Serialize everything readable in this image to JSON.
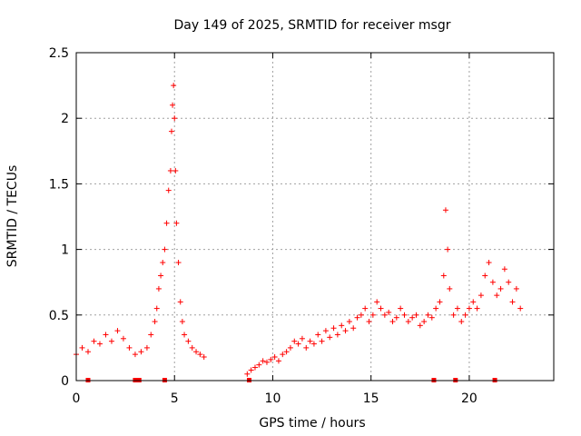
{
  "chart_data": {
    "type": "scatter",
    "title": "Day 149 of 2025, SRMTID for receiver msgr",
    "xlabel": "GPS time / hours",
    "ylabel": "SRMTID / TECUs",
    "xlim": [
      0,
      24.3
    ],
    "ylim": [
      0,
      2.5
    ],
    "x_ticks": [
      0,
      5,
      10,
      15,
      20
    ],
    "x_tick_labels": [
      "0",
      "5",
      "10",
      "15",
      "20"
    ],
    "y_ticks": [
      0,
      0.5,
      1,
      1.5,
      2,
      2.5
    ],
    "y_tick_labels": [
      "0",
      "0.5",
      "1",
      "1.5",
      "2",
      "2.5"
    ],
    "grid": true,
    "marker": "+",
    "series_color": "#ff0000",
    "series": [
      {
        "name": "SRMTID",
        "x": [
          0.0,
          0.3,
          0.6,
          0.9,
          1.2,
          1.5,
          1.8,
          2.1,
          2.4,
          2.7,
          3.0,
          3.3,
          3.6,
          3.8,
          4.0,
          4.1,
          4.2,
          4.3,
          4.4,
          4.5,
          4.6,
          4.7,
          4.8,
          4.85,
          4.9,
          4.95,
          5.0,
          5.05,
          5.1,
          5.2,
          5.3,
          5.4,
          5.5,
          5.7,
          5.9,
          6.1,
          6.3,
          6.5,
          8.7,
          8.9,
          9.1,
          9.3,
          9.5,
          9.7,
          9.9,
          10.1,
          10.3,
          10.5,
          10.7,
          10.9,
          11.1,
          11.3,
          11.5,
          11.7,
          11.9,
          12.1,
          12.3,
          12.5,
          12.7,
          12.9,
          13.1,
          13.3,
          13.5,
          13.7,
          13.9,
          14.1,
          14.3,
          14.5,
          14.7,
          14.9,
          15.1,
          15.3,
          15.5,
          15.7,
          15.9,
          16.1,
          16.3,
          16.5,
          16.7,
          16.9,
          17.1,
          17.3,
          17.5,
          17.7,
          17.9,
          18.1,
          18.3,
          18.5,
          18.7,
          18.8,
          18.9,
          19.0,
          19.2,
          19.4,
          19.6,
          19.8,
          20.0,
          20.2,
          20.4,
          20.6,
          20.8,
          21.0,
          21.2,
          21.4,
          21.6,
          21.8,
          22.0,
          22.2,
          22.4,
          22.6
        ],
        "y": [
          0.2,
          0.25,
          0.22,
          0.3,
          0.28,
          0.35,
          0.3,
          0.38,
          0.32,
          0.25,
          0.2,
          0.22,
          0.25,
          0.35,
          0.45,
          0.55,
          0.7,
          0.8,
          0.9,
          1.0,
          1.2,
          1.45,
          1.6,
          1.9,
          2.1,
          2.25,
          2.0,
          1.6,
          1.2,
          0.9,
          0.6,
          0.45,
          0.35,
          0.3,
          0.25,
          0.22,
          0.2,
          0.18,
          0.05,
          0.08,
          0.1,
          0.12,
          0.15,
          0.14,
          0.16,
          0.18,
          0.15,
          0.2,
          0.22,
          0.25,
          0.3,
          0.28,
          0.32,
          0.25,
          0.3,
          0.28,
          0.35,
          0.3,
          0.38,
          0.33,
          0.4,
          0.35,
          0.42,
          0.38,
          0.45,
          0.4,
          0.48,
          0.5,
          0.55,
          0.45,
          0.5,
          0.6,
          0.55,
          0.5,
          0.52,
          0.45,
          0.48,
          0.55,
          0.5,
          0.45,
          0.48,
          0.5,
          0.42,
          0.45,
          0.5,
          0.48,
          0.55,
          0.6,
          0.8,
          1.3,
          1.0,
          0.7,
          0.5,
          0.55,
          0.45,
          0.5,
          0.55,
          0.6,
          0.55,
          0.65,
          0.8,
          0.9,
          0.75,
          0.65,
          0.7,
          0.85,
          0.75,
          0.6,
          0.7,
          0.55
        ]
      }
    ],
    "bottom_markers_x": [
      0.6,
      3.0,
      3.2,
      4.5,
      8.8,
      18.2,
      19.3,
      21.3
    ]
  }
}
